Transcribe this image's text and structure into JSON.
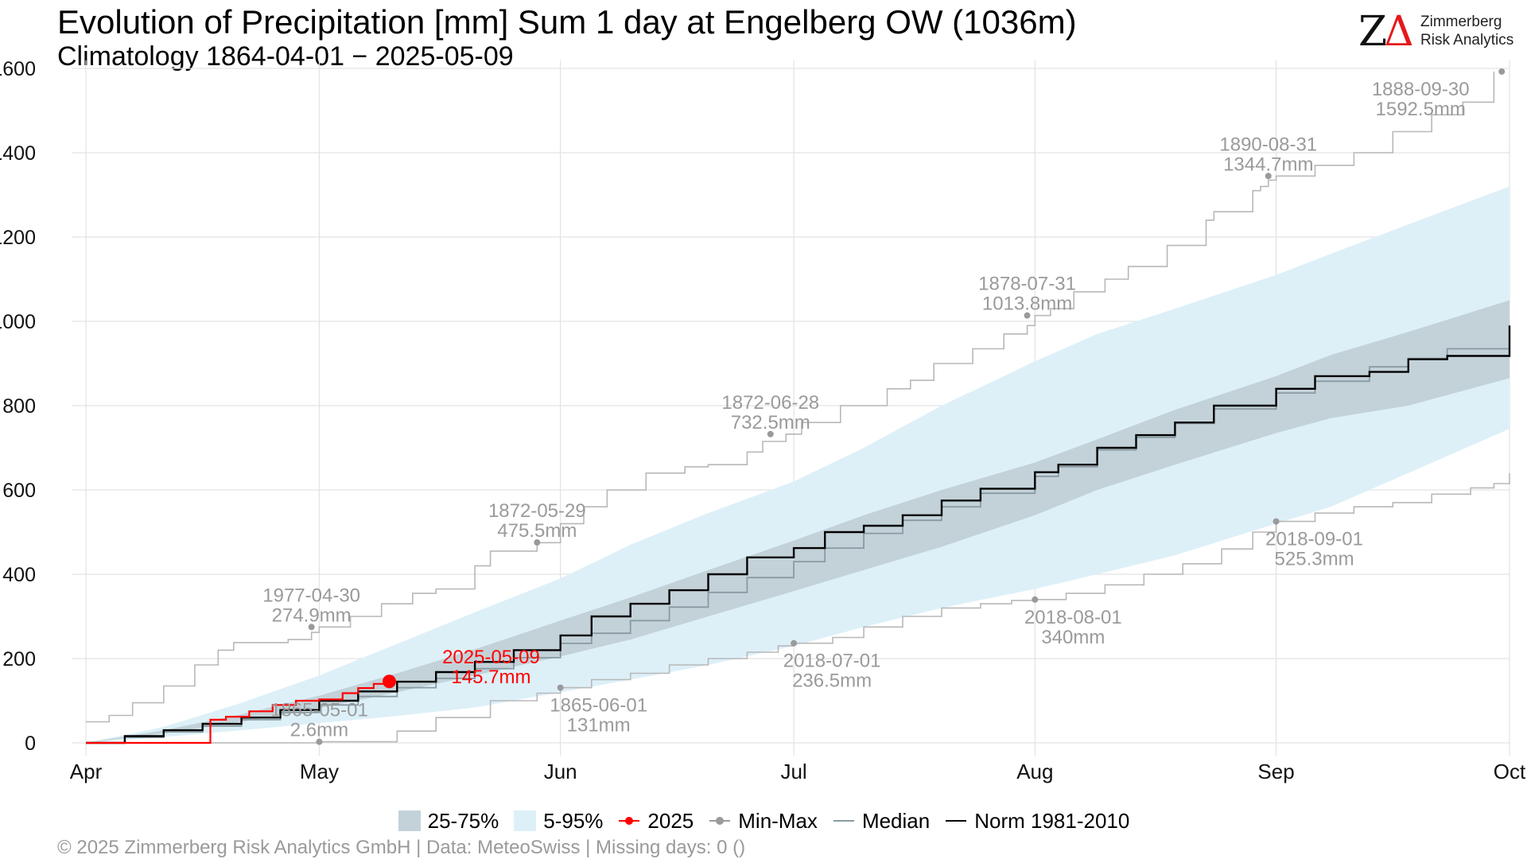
{
  "header": {
    "title": "Evolution of Precipitation [mm] Sum 1 day at Engelberg  OW (1036m)",
    "subtitle": "Climatology 1864-04-01 − 2025-05-09"
  },
  "logo": {
    "mark_z": "Z",
    "mark_delta": "Δ",
    "line1": "Zimmerberg",
    "line2": "Risk Analytics"
  },
  "footer": {
    "text": "©  2025 Zimmerberg Risk Analytics GmbH | Data: MeteoSwiss | Missing days: 0 ()"
  },
  "colors": {
    "iqr": "#c3d2d9",
    "p5_95": "#ddf0f8",
    "current": "#ff0000",
    "minmax": "#9a9a9a",
    "median": "#8a9aa2",
    "norm": "#000000",
    "grid": "#e3e3e3",
    "annotation": "#9a9a9a"
  },
  "legend": {
    "iqr": "25-75%",
    "p5_95": "5-95%",
    "current": "2025",
    "minmax": "Min-Max",
    "median": "Median",
    "norm": "Norm 1981-2010"
  },
  "chart_data": {
    "type": "line",
    "title": "Evolution of Precipitation [mm] Sum 1 day at Engelberg  OW (1036m)",
    "subtitle": "Climatology 1864-04-01 − 2025-05-09",
    "x_unit": "day of season (Apr 1 = 0)",
    "xlim": [
      0,
      183
    ],
    "ylim": [
      0,
      1600
    ],
    "y_ticks": [
      0,
      200,
      400,
      600,
      800,
      1000,
      1200,
      1400,
      1600
    ],
    "x_ticks": [
      {
        "label": "Apr",
        "day": 0
      },
      {
        "label": "May",
        "day": 30
      },
      {
        "label": "Jun",
        "day": 61
      },
      {
        "label": "Jul",
        "day": 91
      },
      {
        "label": "Aug",
        "day": 122
      },
      {
        "label": "Sep",
        "day": 153
      },
      {
        "label": "Oct",
        "day": 183
      }
    ],
    "grid": true,
    "legend_position": "bottom",
    "band_5_95": {
      "x": [
        0,
        10,
        20,
        30,
        40,
        50,
        61,
        70,
        80,
        91,
        100,
        110,
        122,
        130,
        140,
        153,
        160,
        170,
        183
      ],
      "low": [
        0,
        14,
        30,
        47,
        64,
        84,
        120,
        150,
        185,
        230,
        275,
        320,
        365,
        400,
        445,
        520,
        560,
        640,
        745
      ],
      "high": [
        0,
        38,
        95,
        160,
        235,
        310,
        390,
        470,
        545,
        620,
        700,
        800,
        905,
        970,
        1030,
        1110,
        1160,
        1230,
        1320
      ]
    },
    "band_25_75": {
      "x": [
        0,
        10,
        20,
        30,
        40,
        50,
        61,
        70,
        80,
        91,
        100,
        110,
        122,
        130,
        140,
        153,
        160,
        170,
        183
      ],
      "low": [
        0,
        22,
        50,
        82,
        120,
        160,
        205,
        245,
        300,
        360,
        410,
        465,
        540,
        600,
        660,
        735,
        770,
        800,
        865
      ],
      "high": [
        0,
        30,
        68,
        112,
        165,
        222,
        290,
        345,
        410,
        480,
        540,
        600,
        665,
        720,
        790,
        870,
        920,
        975,
        1050
      ]
    },
    "series": [
      {
        "name": "Median",
        "style": "step",
        "x": [
          0,
          5,
          10,
          15,
          20,
          25,
          30,
          35,
          40,
          45,
          50,
          55,
          61,
          65,
          70,
          75,
          80,
          85,
          91,
          95,
          100,
          105,
          110,
          115,
          122,
          125,
          130,
          135,
          140,
          145,
          153,
          158,
          165,
          170,
          175,
          183
        ],
        "y": [
          0,
          13,
          26,
          40,
          55,
          72,
          90,
          110,
          131,
          153,
          176,
          202,
          236,
          260,
          290,
          322,
          357,
          392,
          430,
          462,
          497,
          528,
          560,
          592,
          632,
          655,
          695,
          725,
          758,
          792,
          830,
          858,
          892,
          912,
          935,
          970
        ]
      },
      {
        "name": "Norm 1981-2010",
        "style": "step",
        "x": [
          0,
          5,
          10,
          15,
          20,
          25,
          30,
          35,
          40,
          45,
          50,
          55,
          61,
          65,
          70,
          75,
          80,
          85,
          91,
          95,
          100,
          105,
          110,
          115,
          122,
          125,
          130,
          135,
          140,
          145,
          153,
          158,
          165,
          170,
          175,
          183
        ],
        "y": [
          0,
          16,
          30,
          45,
          60,
          78,
          100,
          122,
          145,
          168,
          192,
          220,
          255,
          300,
          330,
          362,
          400,
          440,
          462,
          500,
          515,
          540,
          575,
          603,
          642,
          660,
          700,
          730,
          760,
          800,
          840,
          870,
          880,
          910,
          918,
          990
        ]
      },
      {
        "name": "2025",
        "style": "step",
        "x": [
          0,
          15,
          16,
          18,
          21,
          24,
          27,
          30,
          33,
          35,
          37,
          39
        ],
        "y": [
          0,
          0,
          55,
          62,
          75,
          90,
          100,
          103,
          118,
          130,
          140,
          145.7
        ]
      },
      {
        "name": "Max",
        "style": "step",
        "x": [
          0,
          3,
          6,
          10,
          14,
          17,
          19,
          26,
          29,
          30,
          34,
          38,
          42,
          45,
          50,
          52,
          58,
          61,
          64,
          67,
          72,
          77,
          80,
          85,
          87,
          90,
          92,
          97,
          103,
          106,
          109,
          114,
          118,
          121,
          122,
          124,
          127,
          131,
          134,
          139,
          144,
          145,
          150,
          151,
          152,
          153,
          158,
          163,
          168,
          173,
          177,
          181
        ],
        "y": [
          50,
          65,
          95,
          135,
          185,
          220,
          238,
          245,
          262,
          275,
          300,
          330,
          355,
          365,
          420,
          455,
          475,
          520,
          560,
          600,
          640,
          655,
          660,
          690,
          715,
          732.5,
          760,
          800,
          840,
          860,
          900,
          935,
          970,
          990,
          1013.8,
          1030,
          1070,
          1100,
          1130,
          1180,
          1240,
          1260,
          1310,
          1320,
          1335,
          1344.7,
          1370,
          1400,
          1450,
          1490,
          1520,
          1592.5
        ]
      },
      {
        "name": "Min",
        "style": "step",
        "x": [
          0,
          20,
          30,
          40,
          45,
          52,
          58,
          61,
          65,
          70,
          75,
          80,
          85,
          89,
          91,
          96,
          100,
          105,
          110,
          115,
          119,
          122,
          126,
          131,
          136,
          141,
          146,
          150,
          153,
          158,
          163,
          168,
          173,
          178,
          181,
          183
        ],
        "y": [
          0,
          0,
          2.6,
          28,
          60,
          100,
          118,
          131,
          150,
          165,
          185,
          200,
          215,
          230,
          236.5,
          250,
          275,
          300,
          320,
          330,
          338,
          340,
          355,
          375,
          400,
          425,
          460,
          500,
          525.3,
          545,
          560,
          570,
          590,
          605,
          615,
          640
        ]
      }
    ],
    "current_point": {
      "day": 39,
      "value": 145.7
    },
    "annotations": [
      {
        "date": "1977-04-30",
        "value": "274.9mm",
        "x": 29,
        "y": 274.9,
        "series": "Max",
        "place": "above"
      },
      {
        "date": "1872-05-29",
        "value": "475.5mm",
        "x": 58,
        "y": 475.5,
        "series": "Max",
        "place": "above"
      },
      {
        "date": "1872-06-28",
        "value": "732.5mm",
        "x": 88,
        "y": 732.5,
        "series": "Max",
        "place": "above"
      },
      {
        "date": "1878-07-31",
        "value": "1013.8mm",
        "x": 121,
        "y": 1013.8,
        "series": "Max",
        "place": "above"
      },
      {
        "date": "1890-08-31",
        "value": "1344.7mm",
        "x": 152,
        "y": 1344.7,
        "series": "Max",
        "place": "above"
      },
      {
        "date": "1888-09-30",
        "value": "1592.5mm",
        "x": 182,
        "y": 1592.5,
        "series": "Max",
        "place": "left"
      },
      {
        "date": "1865-05-01",
        "value": "2.6mm",
        "x": 30,
        "y": 2.6,
        "series": "Min",
        "place": "above"
      },
      {
        "date": "1865-06-01",
        "value": "131mm",
        "x": 61,
        "y": 131,
        "series": "Min",
        "place": "below"
      },
      {
        "date": "2018-07-01",
        "value": "236.5mm",
        "x": 91,
        "y": 236.5,
        "series": "Min",
        "place": "below"
      },
      {
        "date": "2018-08-01",
        "value": "340mm",
        "x": 122,
        "y": 340,
        "series": "Min",
        "place": "below"
      },
      {
        "date": "2018-09-01",
        "value": "525.3mm",
        "x": 153,
        "y": 525.3,
        "series": "Min",
        "place": "below"
      },
      {
        "date": "2025-05-09",
        "value": "145.7mm",
        "x": 39,
        "y": 145.7,
        "series": "2025",
        "place": "right"
      }
    ]
  }
}
